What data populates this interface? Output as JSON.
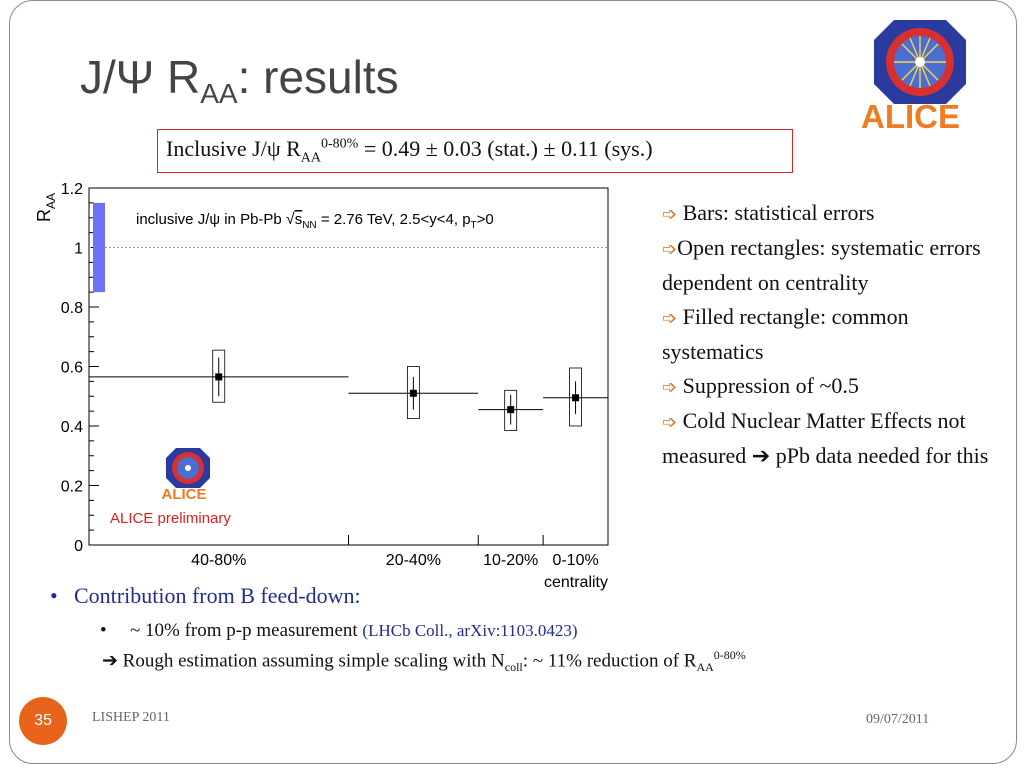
{
  "slide": {
    "title_main": "J/Ψ R",
    "title_sub": "AA",
    "title_rest": ": results",
    "logo_text": "ALICE",
    "page_number": "35",
    "footer_left": "LISHEP 2011",
    "footer_right": "09/07/2011"
  },
  "result": {
    "prefix": "Inclusive J/ψ R",
    "sub": "AA",
    "sup": "0-80%",
    "value": " = 0.49 ± 0.03 (stat.) ± 0.11 (sys.)"
  },
  "notes": [
    {
      "text": " Bars: statistical errors"
    },
    {
      "text": "Open rectangles: systematic errors dependent on centrality"
    },
    {
      "text": " Filled rectangle: common systematics"
    },
    {
      "text": " Suppression of ~0.5"
    },
    {
      "text": " Cold Nuclear Matter Effects not measured"
    },
    {
      "text": " pPb data needed for this"
    }
  ],
  "note_arrow": "➩",
  "note_implies": "➔",
  "bullets": {
    "b1": "Contribution from B feed-down:",
    "b1_marker": "•",
    "b2": "~ 10% from p-p measurement ",
    "b2_marker": "•",
    "b2_ref": "(LHCb Coll., arXiv:1103.0423)",
    "b3_arrow": "➔",
    "b3_a": " Rough estimation assuming simple scaling with N",
    "b3_sub1": "coll",
    "b3_b": ": ~ 11% reduction of R",
    "b3_sub2": "AA",
    "b3_sup": "0-80%"
  },
  "chart_data": {
    "type": "scatter",
    "legend_text": "inclusive J/ψ in Pb-Pb",
    "legend_energy": "= 2.76 TeV, 2.5<y<4, p",
    "legend_energy_sub": "T",
    "legend_energy_tail": ">0",
    "legend_snn": "s",
    "legend_snn_sub": "NN",
    "ylabel": "R",
    "ylabel_sub": "AA",
    "xlabel": "centrality",
    "ylim": [
      0,
      1.2
    ],
    "yticks": [
      "0",
      "0.2",
      "0.4",
      "0.6",
      "0.8",
      "1",
      "1.2"
    ],
    "reference_line": 1,
    "common_systematic": {
      "low": 0.85,
      "high": 1.15,
      "color": "#6b72f5"
    },
    "categories": [
      "40-80%",
      "20-40%",
      "10-20%",
      "0-10%"
    ],
    "bins": [
      [
        40,
        80
      ],
      [
        20,
        40
      ],
      [
        10,
        20
      ],
      [
        0,
        10
      ]
    ],
    "values": [
      0.565,
      0.51,
      0.455,
      0.495
    ],
    "stat_errors": [
      0.065,
      0.055,
      0.05,
      0.055
    ],
    "sys_low": [
      0.48,
      0.425,
      0.385,
      0.4
    ],
    "sys_high": [
      0.655,
      0.6,
      0.52,
      0.595
    ],
    "preliminary_label": "ALICE preliminary",
    "logo_label": "ALICE",
    "grid": false
  }
}
